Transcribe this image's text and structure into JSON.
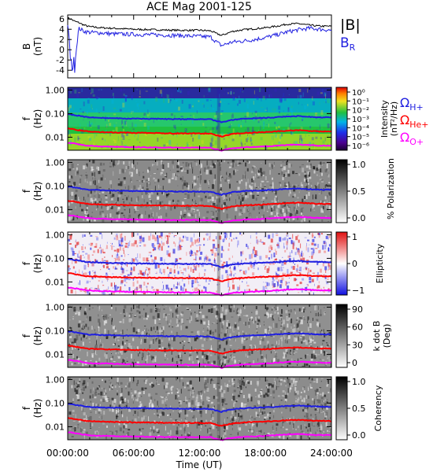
{
  "title": "ACE Mag 2001-125",
  "xlabel": "Time (UT)",
  "xticks": [
    "00:00:00",
    "06:00:00",
    "12:00:00",
    "18:00:00",
    "24:00:00"
  ],
  "colors": {
    "total": "#000000",
    "br": "#1f1fe0",
    "h_plus": "#1f1fe0",
    "he_plus": "#ff0000",
    "o_plus": "#ff00ff"
  },
  "chart_data": [
    {
      "type": "line",
      "panel": "B",
      "ylabel": "B",
      "yunits": "(nT)",
      "ylim": [
        -5.5,
        6.8
      ],
      "yticks": [
        "6",
        "4",
        "2",
        "0",
        "-2",
        "-4"
      ],
      "x_hours": [
        0,
        0.3,
        0.6,
        1,
        1.5,
        2,
        3,
        4,
        6,
        8,
        10,
        12,
        13,
        13.5,
        14,
        14.5,
        15,
        16,
        17,
        18,
        19,
        20,
        21,
        22,
        23,
        24
      ],
      "series": [
        {
          "name": "|B|",
          "values": [
            6.2,
            6.0,
            5.6,
            5.3,
            4.8,
            4.5,
            4.3,
            4.2,
            4.0,
            3.9,
            3.8,
            3.8,
            3.7,
            3.2,
            2.8,
            3.2,
            3.6,
            3.9,
            4.1,
            4.3,
            4.6,
            5.0,
            5.1,
            4.8,
            4.6,
            4.6
          ]
        },
        {
          "name": "B",
          "subscript": "R",
          "values": [
            5.0,
            -1.0,
            -3.5,
            4.2,
            3.6,
            3.4,
            3.3,
            3.1,
            3.0,
            2.9,
            2.8,
            2.6,
            2.5,
            1.6,
            0.8,
            1.2,
            1.5,
            1.7,
            2.0,
            2.4,
            2.9,
            3.5,
            3.9,
            4.2,
            4.0,
            3.8
          ]
        }
      ]
    },
    {
      "type": "heatmap",
      "panel": "Power spectral intensity",
      "ylabel": "f",
      "yunits": "(Hz)",
      "yticks": [
        "1.00",
        "0.10",
        "0.01"
      ],
      "colorbar_label": "Intensity",
      "colorbar_units": "(nT²/Hz)",
      "colorbar_ticks": [
        "10⁰",
        "10⁻¹",
        "10⁻²",
        "10⁻³",
        "10⁻⁴",
        "10⁻⁵",
        "10⁻⁶"
      ]
    },
    {
      "type": "heatmap",
      "panel": "Polarization",
      "ylabel": "f",
      "yunits": "(Hz)",
      "yticks": [
        "1.00",
        "0.10",
        "0.01"
      ],
      "colorbar_label": "% Polarization",
      "colorbar_ticks": [
        "1.0",
        "0.5",
        "0.0"
      ]
    },
    {
      "type": "heatmap",
      "panel": "Ellipticity",
      "ylabel": "f",
      "yunits": "(Hz)",
      "yticks": [
        "1.00",
        "0.10",
        "0.01"
      ],
      "colorbar_label": "Ellipticity",
      "colorbar_ticks": [
        "1",
        "0",
        "−1"
      ]
    },
    {
      "type": "heatmap",
      "panel": "k dot B",
      "ylabel": "f",
      "yunits": "(Hz)",
      "yticks": [
        "1.00",
        "0.10",
        "0.01"
      ],
      "colorbar_label": "k dot B",
      "colorbar_units": "(Deg)",
      "colorbar_ticks": [
        "90",
        "60",
        "30",
        "0"
      ]
    },
    {
      "type": "heatmap",
      "panel": "Coherency",
      "ylabel": "f",
      "yunits": "(Hz)",
      "yticks": [
        "1.00",
        "0.10",
        "0.01"
      ],
      "colorbar_label": "Coherency",
      "colorbar_ticks": [
        "1.0",
        "0.5",
        "0.0"
      ]
    }
  ],
  "gyrofrequencies": {
    "x_hours": [
      0,
      0.3,
      0.6,
      1,
      1.5,
      2,
      3,
      4,
      6,
      8,
      10,
      12,
      13,
      13.5,
      14,
      14.5,
      15,
      16,
      17,
      18,
      19,
      20,
      21,
      22,
      23,
      24
    ],
    "series": [
      {
        "name": "Ω",
        "subscript": "H+",
        "values_hz": [
          0.095,
          0.092,
          0.086,
          0.081,
          0.073,
          0.069,
          0.066,
          0.064,
          0.061,
          0.06,
          0.058,
          0.058,
          0.057,
          0.049,
          0.043,
          0.049,
          0.055,
          0.06,
          0.063,
          0.066,
          0.07,
          0.076,
          0.078,
          0.073,
          0.07,
          0.07
        ]
      },
      {
        "name": "Ω",
        "subscript": "He+",
        "values_hz": [
          0.024,
          0.023,
          0.0215,
          0.02,
          0.018,
          0.0172,
          0.0165,
          0.016,
          0.0153,
          0.015,
          0.0145,
          0.0145,
          0.0142,
          0.0122,
          0.0107,
          0.0122,
          0.0137,
          0.015,
          0.0157,
          0.0165,
          0.0175,
          0.019,
          0.0195,
          0.0183,
          0.0175,
          0.0175
        ]
      },
      {
        "name": "Ω",
        "subscript": "O+",
        "values_hz": [
          0.0059,
          0.0057,
          0.0054,
          0.005,
          0.0046,
          0.0043,
          0.0041,
          0.004,
          0.0038,
          0.0037,
          0.0036,
          0.0036,
          0.0036,
          0.0031,
          0.0027,
          0.0031,
          0.0034,
          0.0037,
          0.0039,
          0.0041,
          0.0044,
          0.0047,
          0.0049,
          0.0046,
          0.0044,
          0.0044
        ]
      }
    ]
  }
}
